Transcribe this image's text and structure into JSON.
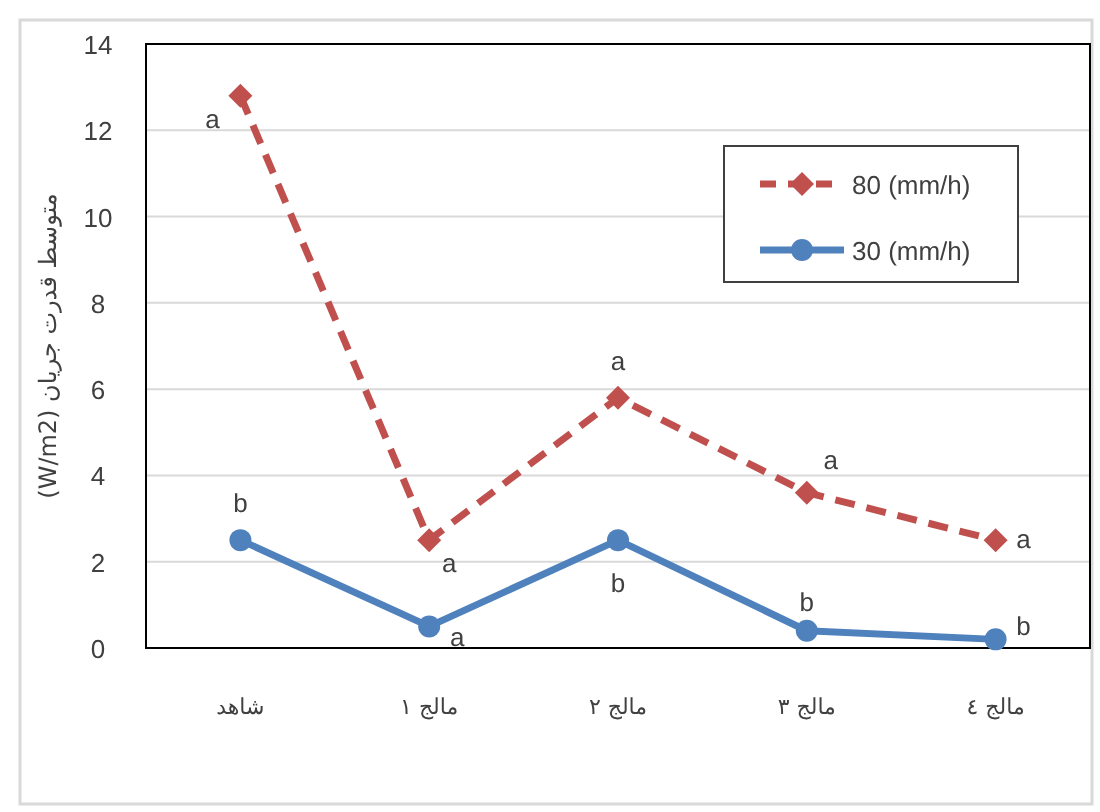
{
  "chart_data": {
    "type": "line",
    "ylabel": "متوسط قدرت جریان (W/m2)",
    "categories": [
      "شاهد",
      "مالج ۱",
      "مالج ۲",
      "مالج ۳",
      "مالج ٤"
    ],
    "series": [
      {
        "name": "80 (mm/h)",
        "color": "#c0504d",
        "values": [
          12.8,
          2.5,
          5.8,
          3.6,
          2.5
        ],
        "marker": "diamond",
        "line_style": "dashed"
      },
      {
        "name": "30 (mm/h)",
        "color": "#4f81bd",
        "values": [
          2.5,
          0.5,
          2.5,
          0.4,
          0.2
        ],
        "marker": "circle",
        "line_style": "solid"
      }
    ],
    "ylim": [
      0,
      14
    ],
    "yticks": [
      0,
      2,
      4,
      6,
      8,
      10,
      12,
      14
    ],
    "grid": "y",
    "legend": "top right",
    "annotations": [
      {
        "text": "a",
        "x": "شاهد",
        "y": 12.8
      },
      {
        "text": "a",
        "x": "مالج ۱",
        "y": 2.5
      },
      {
        "text": "a",
        "x": "مالج ۲",
        "y": 5.8
      },
      {
        "text": "a",
        "x": "مالج ۳",
        "y": 3.6
      },
      {
        "text": "a",
        "x": "مالج ٤",
        "y": 2.5
      },
      {
        "text": "b",
        "x": "شاهد",
        "y": 2.5
      },
      {
        "text": "a",
        "x": "مالج ۱",
        "y": 0.5
      },
      {
        "text": "b",
        "x": "مالج ۲",
        "y": 2.5
      },
      {
        "text": "b",
        "x": "مالج ۳",
        "y": 0.4
      },
      {
        "text": "b",
        "x": "مالج ٤",
        "y": 0.2
      }
    ]
  }
}
